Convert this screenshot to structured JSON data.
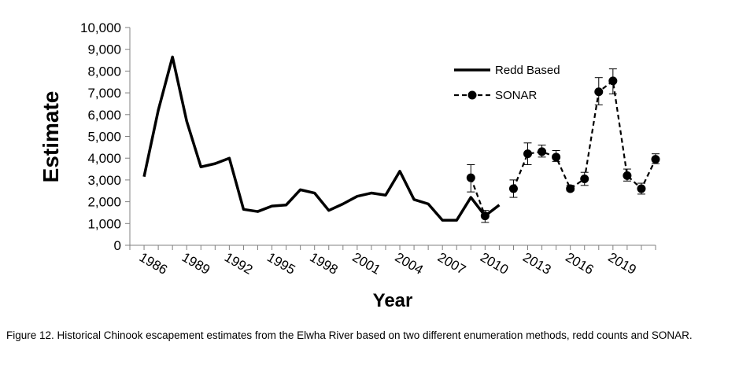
{
  "chart_data": {
    "type": "line",
    "title": "",
    "xlabel": "Year",
    "ylabel": "Estimate",
    "ylim": [
      0,
      10000
    ],
    "yticks": [
      0,
      1000,
      2000,
      3000,
      4000,
      5000,
      6000,
      7000,
      8000,
      9000,
      10000
    ],
    "ytick_labels": [
      "0",
      "1,000",
      "2,000",
      "3,000",
      "4,000",
      "5,000",
      "6,000",
      "7,000",
      "8,000",
      "9,000",
      "10,000"
    ],
    "xlim": [
      1985,
      2022
    ],
    "xtick_labels": [
      "1986",
      "1989",
      "1992",
      "1995",
      "1998",
      "2001",
      "2004",
      "2007",
      "2010",
      "2013",
      "2016",
      "2019"
    ],
    "grid": false,
    "legend_position": "top-right",
    "series": [
      {
        "name": "Redd Based",
        "style": "solid",
        "color": "#000000",
        "x": [
          1986,
          1987,
          1988,
          1989,
          1990,
          1991,
          1992,
          1993,
          1994,
          1995,
          1996,
          1997,
          1998,
          1999,
          2000,
          2001,
          2002,
          2003,
          2004,
          2005,
          2006,
          2007,
          2008,
          2009,
          2010,
          2011
        ],
        "values": [
          3150,
          6200,
          8650,
          5700,
          3600,
          3750,
          4000,
          1650,
          1550,
          1800,
          1850,
          2550,
          2400,
          1600,
          1900,
          2250,
          2400,
          2300,
          3400,
          2100,
          1900,
          1150,
          1150,
          2200,
          1350,
          1850
        ]
      },
      {
        "name": "SONAR",
        "style": "dashed",
        "marker": "circle",
        "color": "#000000",
        "x": [
          2009,
          2010,
          2012,
          2013,
          2014,
          2015,
          2016,
          2017,
          2018,
          2019,
          2020,
          2021,
          2022
        ],
        "values": [
          3100,
          1350,
          2600,
          4200,
          4300,
          4050,
          2600,
          3050,
          7050,
          7550,
          3200,
          2600,
          3950
        ],
        "error_low": [
          2450,
          1050,
          2200,
          3700,
          4050,
          3850,
          2500,
          2750,
          6450,
          6950,
          2950,
          2350,
          3750
        ],
        "error_high": [
          3700,
          1600,
          3000,
          4700,
          4600,
          4350,
          2750,
          3350,
          7700,
          8100,
          3500,
          2850,
          4200
        ],
        "gaps_before": [
          2012
        ]
      }
    ]
  },
  "caption": "Figure 12.  Historical Chinook escapement estimates from the Elwha River based on two different enumeration methods, redd counts and SONAR."
}
